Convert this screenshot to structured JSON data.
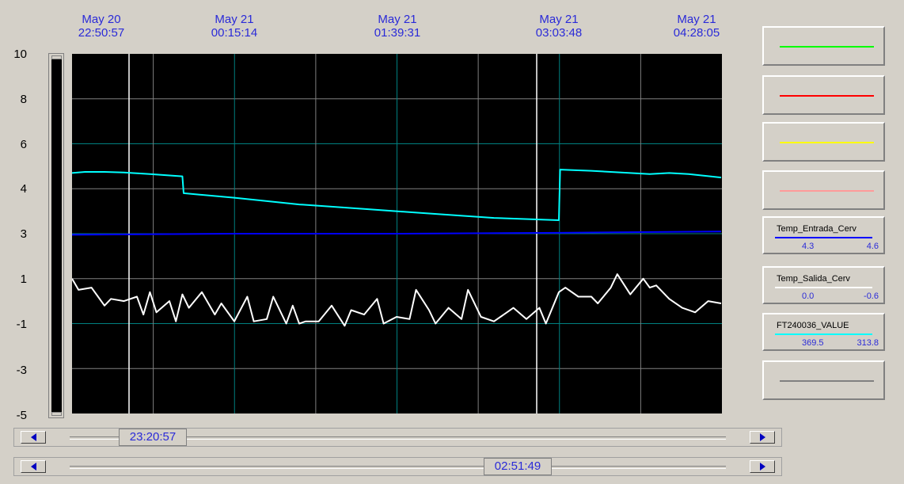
{
  "time_labels": [
    {
      "date": "May 20",
      "time": "22:50:57"
    },
    {
      "date": "May 21",
      "time": "00:15:14"
    },
    {
      "date": "May 21",
      "time": "01:39:31"
    },
    {
      "date": "May 21",
      "time": "03:03:48"
    },
    {
      "date": "May 21",
      "time": "04:28:05"
    }
  ],
  "y_ticks": [
    "10",
    "8",
    "6",
    "4",
    "3",
    "1",
    "-1",
    "-3",
    "-5"
  ],
  "legend": [
    {
      "name": "",
      "color": "#00ff00"
    },
    {
      "name": "",
      "color": "#ff0000"
    },
    {
      "name": "",
      "color": "#ffff00"
    },
    {
      "name": "",
      "color": "#ff9a9a"
    },
    {
      "name": "Temp_Entrada_Cerv",
      "color": "#0000ff",
      "min": "4.3",
      "max": "4.6"
    },
    {
      "name": "Temp_Salida_Cerv",
      "color": "#ffffff",
      "min": "0.0",
      "max": "-0.6"
    },
    {
      "name": "FT240036_VALUE",
      "color": "#00ffff",
      "min": "369.5",
      "max": "313.8"
    },
    {
      "name": "",
      "color": "#808080"
    }
  ],
  "scrollbars": {
    "cursor1_time": "23:20:57",
    "cursor2_time": "02:51:49"
  },
  "colors": {
    "plot_background": "#000000",
    "grid_cyan": "#008080",
    "grid_white": "#808080",
    "cursor": "#ffffff"
  },
  "chart_data": {
    "type": "line",
    "ylim": [
      -5,
      10
    ],
    "y_tick_values": [
      10,
      8,
      6,
      4,
      3,
      1,
      -1,
      -3,
      -5
    ],
    "x_ticks": [
      "May 20 22:50:57",
      "May 21 00:15:14",
      "May 21 01:39:31",
      "May 21 03:03:48",
      "May 21 04:28:05"
    ],
    "cursors": [
      "23:20:57",
      "02:51:49"
    ],
    "series": [
      {
        "name": "FT240036_VALUE",
        "color": "#00ffff",
        "x": [
          0,
          0.02,
          0.05,
          0.08,
          0.12,
          0.17,
          0.172,
          0.25,
          0.35,
          0.45,
          0.55,
          0.65,
          0.75,
          0.752,
          0.8,
          0.86,
          0.89,
          0.92,
          0.95,
          1.0
        ],
        "values": [
          4.7,
          4.75,
          4.75,
          4.72,
          4.65,
          4.55,
          3.9,
          3.8,
          3.65,
          3.55,
          3.45,
          3.35,
          3.3,
          4.85,
          4.8,
          4.7,
          4.65,
          4.7,
          4.65,
          4.5
        ]
      },
      {
        "name": "Temp_Entrada_Cerv",
        "color": "#0000ff",
        "x": [
          0,
          0.25,
          0.5,
          0.75,
          1.0
        ],
        "values": [
          2.95,
          3.0,
          3.0,
          3.02,
          3.05
        ]
      },
      {
        "name": "Temp_Salida_Cerv",
        "color": "#ffffff",
        "x": [
          0,
          0.01,
          0.03,
          0.05,
          0.06,
          0.08,
          0.1,
          0.11,
          0.12,
          0.13,
          0.15,
          0.16,
          0.17,
          0.18,
          0.2,
          0.22,
          0.23,
          0.25,
          0.27,
          0.28,
          0.3,
          0.31,
          0.33,
          0.34,
          0.35,
          0.36,
          0.38,
          0.4,
          0.42,
          0.43,
          0.45,
          0.47,
          0.48,
          0.5,
          0.52,
          0.53,
          0.55,
          0.56,
          0.58,
          0.6,
          0.61,
          0.63,
          0.65,
          0.67,
          0.68,
          0.7,
          0.72,
          0.73,
          0.75,
          0.76,
          0.78,
          0.8,
          0.81,
          0.83,
          0.84,
          0.86,
          0.88,
          0.89,
          0.9,
          0.92,
          0.94,
          0.96,
          0.98,
          1.0
        ],
        "values": [
          1.0,
          0.5,
          0.6,
          -0.2,
          0.1,
          0.0,
          0.2,
          -0.6,
          0.4,
          -0.5,
          0.0,
          -0.9,
          0.3,
          -0.3,
          0.4,
          -0.6,
          -0.1,
          -0.9,
          0.2,
          -0.9,
          -0.8,
          0.2,
          -1.0,
          -0.2,
          -1.0,
          -0.9,
          -0.9,
          -0.2,
          -1.1,
          -0.4,
          -0.6,
          0.1,
          -1.0,
          -0.7,
          -0.8,
          0.5,
          -0.4,
          -1.0,
          -0.3,
          -0.8,
          0.5,
          -0.7,
          -0.9,
          -0.5,
          -0.3,
          -0.8,
          -0.3,
          -1.0,
          0.4,
          0.6,
          0.2,
          0.2,
          -0.1,
          0.6,
          1.2,
          0.3,
          1.0,
          0.6,
          0.7,
          0.1,
          -0.3,
          -0.5,
          0.0,
          -0.1
        ]
      }
    ]
  }
}
